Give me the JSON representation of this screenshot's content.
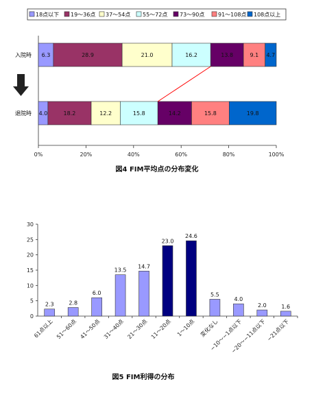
{
  "charts": {
    "fig4": {
      "caption": "図4 FIM平均点の分布変化",
      "series_colors": [
        "#9999ff",
        "#993366",
        "#ffffcc",
        "#ccffff",
        "#660066",
        "#ff8080",
        "#0066cc"
      ],
      "value_text_colors": [
        "#111111",
        "#111111",
        "#111111",
        "#111111",
        "#111111",
        "#111111",
        "#ffffff"
      ],
      "arrow_color": "#222222",
      "connector_color": "#ff0000"
    },
    "fig5": {
      "caption": "図5 FIM利得の分布",
      "colors": {
        "normal": "#9999ff",
        "highlight": "#000080"
      }
    }
  },
  "chart_data": [
    {
      "type": "bar",
      "orientation": "horizontal-stacked",
      "categories": [
        "入院時",
        "退院時"
      ],
      "series": [
        {
          "name": "18点以下",
          "values": [
            6.3,
            4.0
          ]
        },
        {
          "name": "19〜36点",
          "values": [
            28.9,
            18.2
          ]
        },
        {
          "name": "37〜54点",
          "values": [
            21.0,
            12.2
          ]
        },
        {
          "name": "55〜72点",
          "values": [
            16.2,
            15.8
          ]
        },
        {
          "name": "73〜90点",
          "values": [
            13.8,
            14.2
          ]
        },
        {
          "name": "91〜108点",
          "values": [
            9.1,
            15.8
          ]
        },
        {
          "name": "108点以上",
          "values": [
            4.7,
            19.8
          ]
        }
      ],
      "x_ticks": [
        "0%",
        "20%",
        "40%",
        "60%",
        "80%",
        "100%"
      ],
      "xlim": [
        0,
        100
      ],
      "legend": "top",
      "grid": false
    },
    {
      "type": "bar",
      "categories": [
        "61点以上",
        "51〜60点",
        "41〜50点",
        "31〜40点",
        "21〜30点",
        "11〜20点",
        "1〜10点",
        "変化なし",
        "−10〜−1点以下",
        "−20〜−11点以下",
        "−21点以下"
      ],
      "values": [
        2.3,
        2.8,
        6.0,
        13.5,
        14.7,
        23.0,
        24.6,
        5.5,
        4.0,
        2.0,
        1.6
      ],
      "value_labels": [
        "2.3",
        "2.8",
        "6.0",
        "13.5",
        "14.7",
        "23.0",
        "24.6",
        "5.5",
        "4.0",
        "2.0",
        "1.6"
      ],
      "highlighted": [
        false,
        false,
        false,
        false,
        false,
        true,
        true,
        false,
        false,
        false,
        false
      ],
      "y_ticks": [
        "0",
        "5",
        "10",
        "15",
        "20",
        "25",
        "30"
      ],
      "ylim": [
        0,
        30
      ],
      "grid": false
    }
  ]
}
